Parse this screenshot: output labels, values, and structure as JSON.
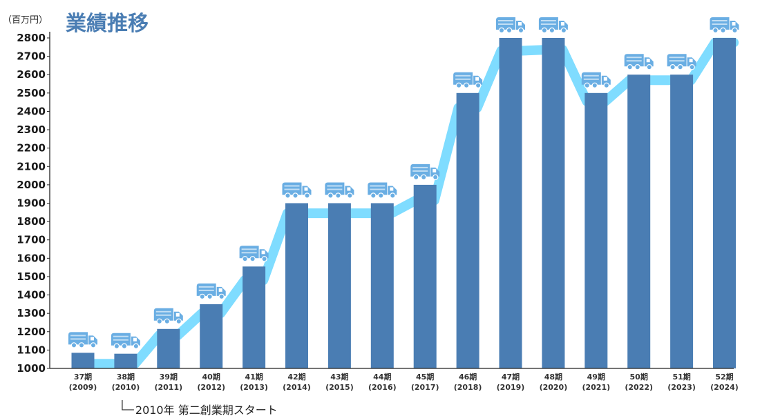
{
  "chart_data": {
    "type": "bar",
    "title": "業績推移",
    "unit_label": "（百万円）",
    "categories": [
      {
        "period": "37期",
        "year": "(2009)"
      },
      {
        "period": "38期",
        "year": "(2010)"
      },
      {
        "period": "39期",
        "year": "(2011)"
      },
      {
        "period": "40期",
        "year": "(2012)"
      },
      {
        "period": "41期",
        "year": "(2013)"
      },
      {
        "period": "42期",
        "year": "(2014)"
      },
      {
        "period": "43期",
        "year": "(2015)"
      },
      {
        "period": "44期",
        "year": "(2016)"
      },
      {
        "period": "45期",
        "year": "(2017)"
      },
      {
        "period": "46期",
        "year": "(2018)"
      },
      {
        "period": "47期",
        "year": "(2019)"
      },
      {
        "period": "48期",
        "year": "(2020)"
      },
      {
        "period": "49期",
        "year": "(2021)"
      },
      {
        "period": "50期",
        "year": "(2022)"
      },
      {
        "period": "51期",
        "year": "(2023)"
      },
      {
        "period": "52期",
        "year": "(2024)"
      }
    ],
    "values": [
      1085,
      1080,
      1215,
      1350,
      1555,
      1900,
      1900,
      1900,
      2000,
      2500,
      2800,
      2800,
      2500,
      2600,
      2600,
      2800
    ],
    "trend_values": [
      1025,
      1025,
      1180,
      1300,
      1480,
      1845,
      1845,
      1845,
      1915,
      2420,
      2730,
      2735,
      2455,
      2570,
      2570,
      2775
    ],
    "yticks": [
      1000,
      1100,
      1200,
      1300,
      1400,
      1500,
      1600,
      1700,
      1800,
      1900,
      2000,
      2100,
      2200,
      2300,
      2400,
      2500,
      2600,
      2700,
      2800
    ],
    "ylim": [
      1000,
      2870
    ],
    "grid": false,
    "annotation": {
      "text": "2010年 第二創業期スタート",
      "category_index": 1
    },
    "bar_icon": "truck-icon"
  },
  "colors": {
    "bar": "#4a7db3",
    "trend_line": "#7fdcff",
    "truck": "#6aaee3",
    "title": "#4a7db3",
    "axis": "#222222"
  }
}
